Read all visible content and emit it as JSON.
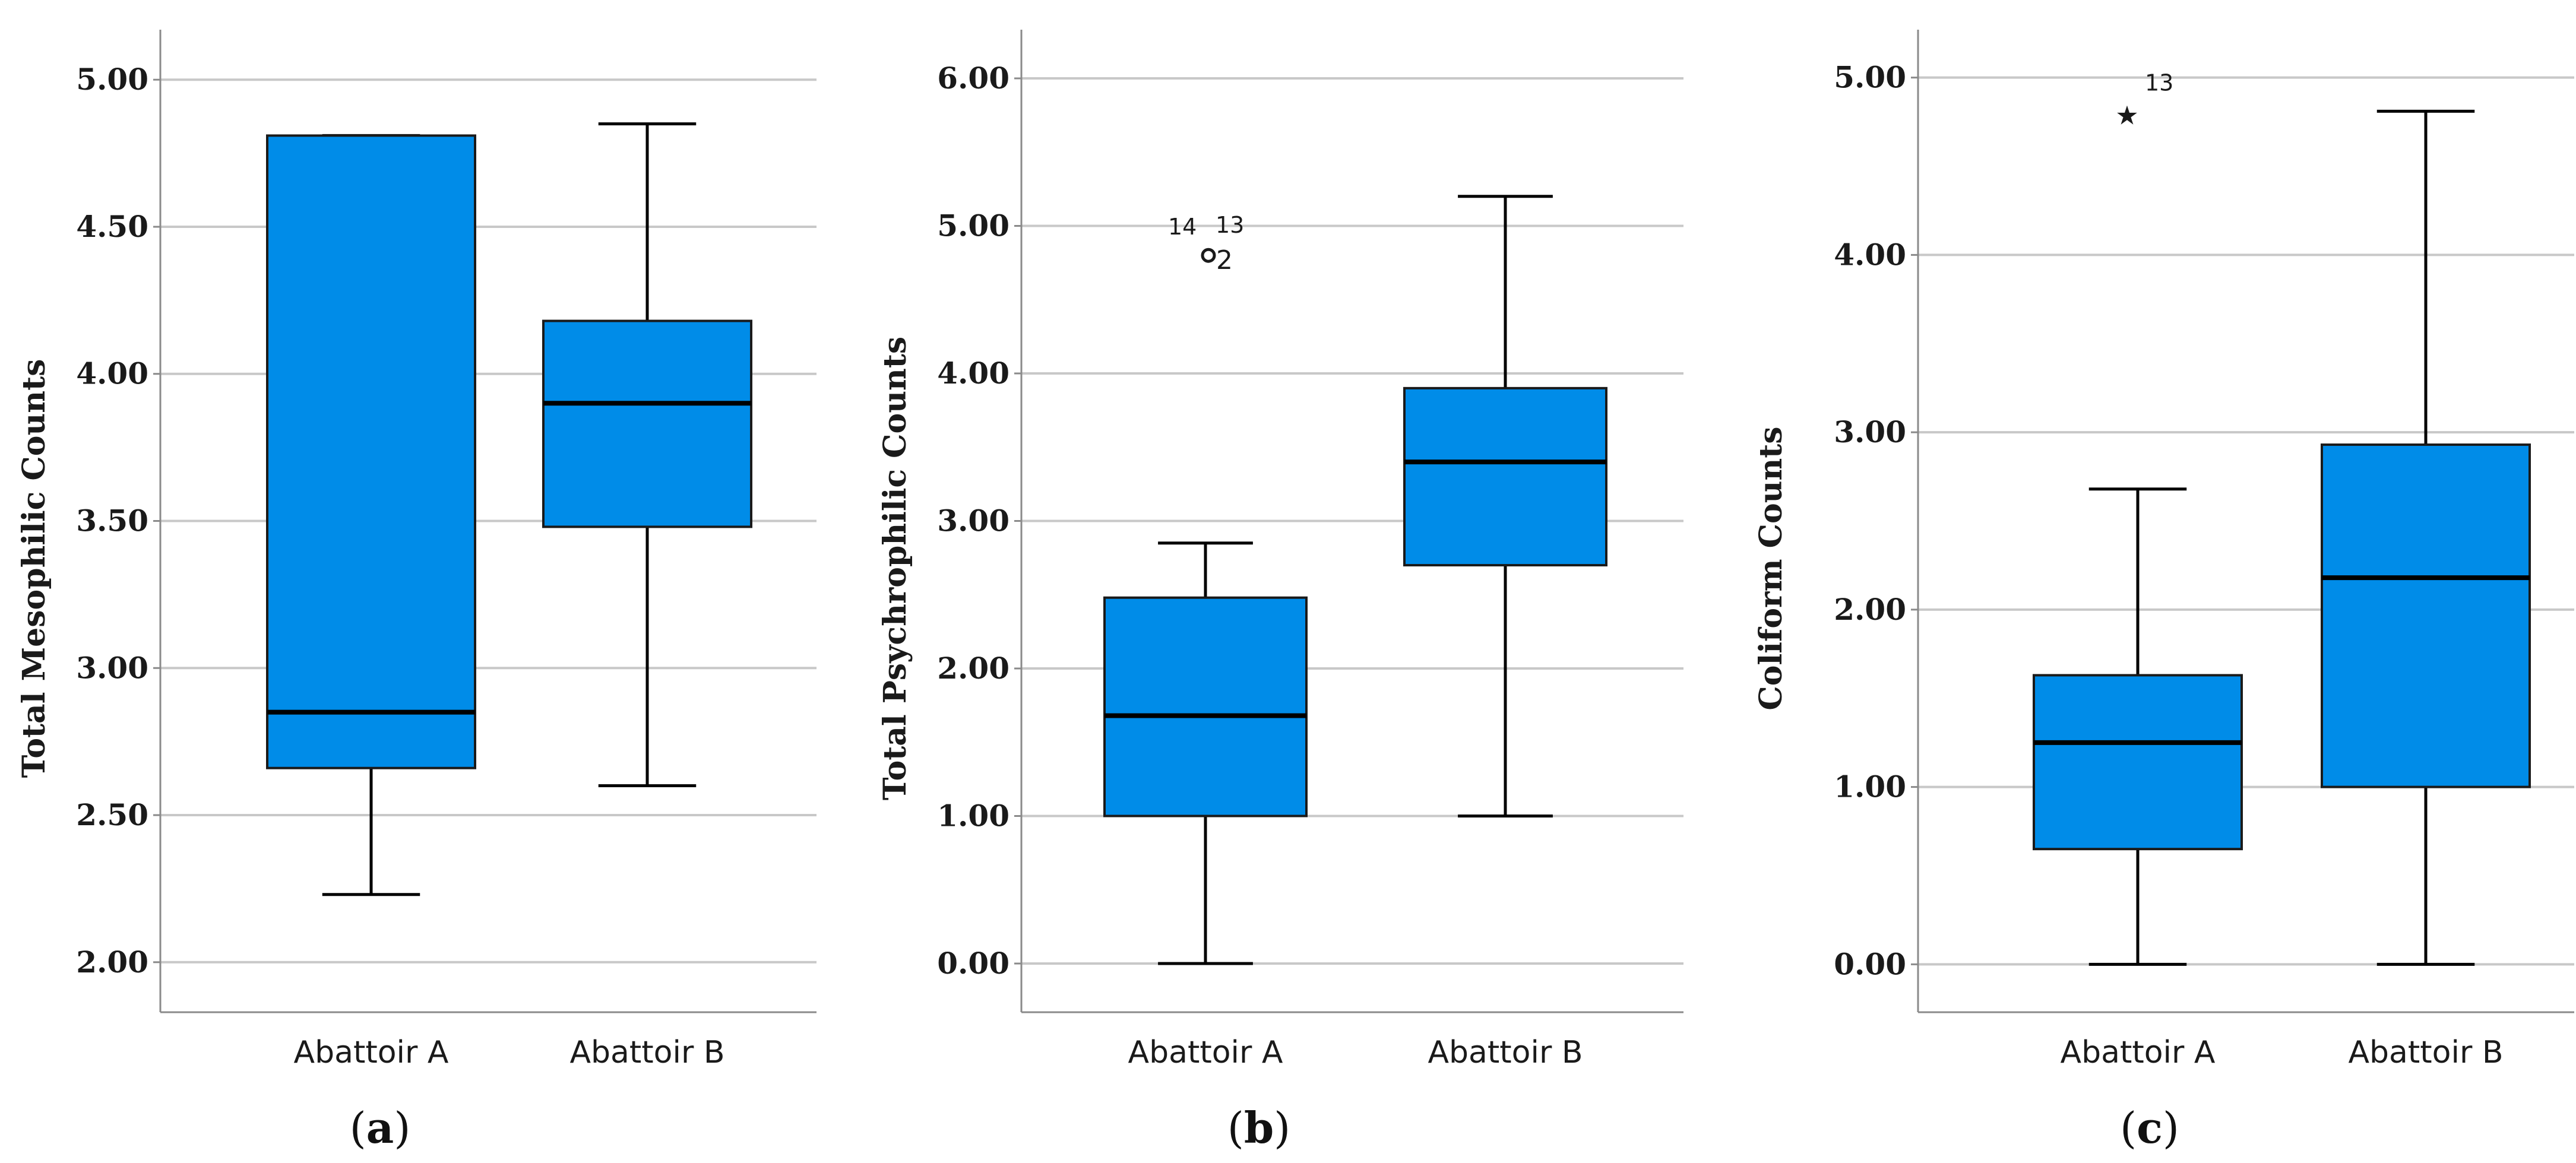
{
  "chart_data": [
    {
      "type": "boxplot",
      "panel_label": "a",
      "ylabel": "Total Mesophilic Counts",
      "ylim": [
        1.83,
        5.17
      ],
      "ticks": [
        2.0,
        2.5,
        3.0,
        3.5,
        4.0,
        4.5,
        5.0
      ],
      "tick_labels": [
        "2.00",
        "2.50",
        "3.00",
        "3.50",
        "4.00",
        "4.50",
        "5.00"
      ],
      "categories": [
        "Abattoir A",
        "Abattoir B"
      ],
      "boxes": [
        {
          "category": "Abattoir A",
          "whisker_low": 2.23,
          "q1": 2.66,
          "median": 2.85,
          "q3": 4.81,
          "whisker_high": 4.81,
          "outliers": []
        },
        {
          "category": "Abattoir B",
          "whisker_low": 2.6,
          "q1": 3.48,
          "median": 3.9,
          "q3": 4.18,
          "whisker_high": 4.85,
          "outliers": []
        }
      ]
    },
    {
      "type": "boxplot",
      "panel_label": "b",
      "ylabel": "Total Psychrophilic Counts",
      "ylim": [
        -0.33,
        6.33
      ],
      "ticks": [
        0,
        1,
        2,
        3,
        4,
        5,
        6
      ],
      "tick_labels": [
        "0.00",
        "1.00",
        "2.00",
        "3.00",
        "4.00",
        "5.00",
        "6.00"
      ],
      "categories": [
        "Abattoir A",
        "Abattoir B"
      ],
      "boxes": [
        {
          "category": "Abattoir A",
          "whisker_low": 0.0,
          "q1": 1.0,
          "median": 1.68,
          "q3": 2.48,
          "whisker_high": 2.85,
          "outliers": [
            {
              "value": 4.8,
              "marker": "circle",
              "label": "14",
              "label2": "13",
              "sub": "2"
            }
          ]
        },
        {
          "category": "Abattoir B",
          "whisker_low": 1.0,
          "q1": 2.7,
          "median": 3.4,
          "q3": 3.9,
          "whisker_high": 5.2,
          "outliers": []
        }
      ]
    },
    {
      "type": "boxplot",
      "panel_label": "c",
      "ylabel": "Coliform Counts",
      "ylim": [
        -0.27,
        5.27
      ],
      "ticks": [
        0,
        1,
        2,
        3,
        4,
        5
      ],
      "tick_labels": [
        "0.00",
        "1.00",
        "2.00",
        "3.00",
        "4.00",
        "5.00"
      ],
      "categories": [
        "Abattoir A",
        "Abattoir B"
      ],
      "boxes": [
        {
          "category": "Abattoir A",
          "whisker_low": 0.0,
          "q1": 0.65,
          "median": 1.25,
          "q3": 1.63,
          "whisker_high": 2.68,
          "outliers": [
            {
              "value": 4.81,
              "marker": "star",
              "label": "13"
            }
          ]
        },
        {
          "category": "Abattoir B",
          "whisker_low": 0.0,
          "q1": 1.0,
          "median": 2.18,
          "q3": 2.93,
          "whisker_high": 4.81,
          "outliers": []
        }
      ]
    }
  ],
  "colors": {
    "box_fill": "#008ce8",
    "box_stroke": "#1a1a1a",
    "grid": "#c8c8c8",
    "axis": "#8a8a8a"
  }
}
